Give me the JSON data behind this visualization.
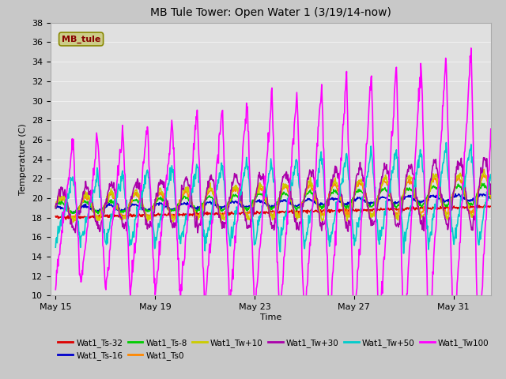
{
  "title": "MB Tule Tower: Open Water 1 (3/19/14-now)",
  "xlabel": "Time",
  "ylabel": "Temperature (C)",
  "ylim": [
    10,
    38
  ],
  "yticks": [
    10,
    12,
    14,
    16,
    18,
    20,
    22,
    24,
    26,
    28,
    30,
    32,
    34,
    36,
    38
  ],
  "xlim_start": 14.8,
  "xlim_end": 32.5,
  "xtick_days": [
    15,
    19,
    23,
    27,
    31
  ],
  "xtick_labels": [
    "May 15",
    "May 19",
    "May 23",
    "May 27",
    "May 31"
  ],
  "fig_bg": "#c8c8c8",
  "plot_bg": "#e0e0e0",
  "grid_color": "#f0f0f0",
  "series": [
    {
      "label": "Wat1_Ts-32",
      "color": "#dd0000",
      "lw": 1.2,
      "zorder": 3
    },
    {
      "label": "Wat1_Ts-16",
      "color": "#0000cc",
      "lw": 1.2,
      "zorder": 3
    },
    {
      "label": "Wat1_Ts-8",
      "color": "#00cc00",
      "lw": 1.2,
      "zorder": 3
    },
    {
      "label": "Wat1_Ts0",
      "color": "#ff8800",
      "lw": 1.2,
      "zorder": 3
    },
    {
      "label": "Wat1_Tw+10",
      "color": "#cccc00",
      "lw": 1.2,
      "zorder": 3
    },
    {
      "label": "Wat1_Tw+30",
      "color": "#aa00aa",
      "lw": 1.2,
      "zorder": 3
    },
    {
      "label": "Wat1_Tw+50",
      "color": "#00cccc",
      "lw": 1.2,
      "zorder": 4
    },
    {
      "label": "Wat1_Tw100",
      "color": "#ff00ff",
      "lw": 1.2,
      "zorder": 5
    }
  ],
  "watermark_text": "MB_tule",
  "watermark_bg": "#cccc88",
  "watermark_border": "#888800",
  "watermark_fg": "#880000",
  "legend_ncol_row1": 6,
  "legend_ncol_row2": 2
}
